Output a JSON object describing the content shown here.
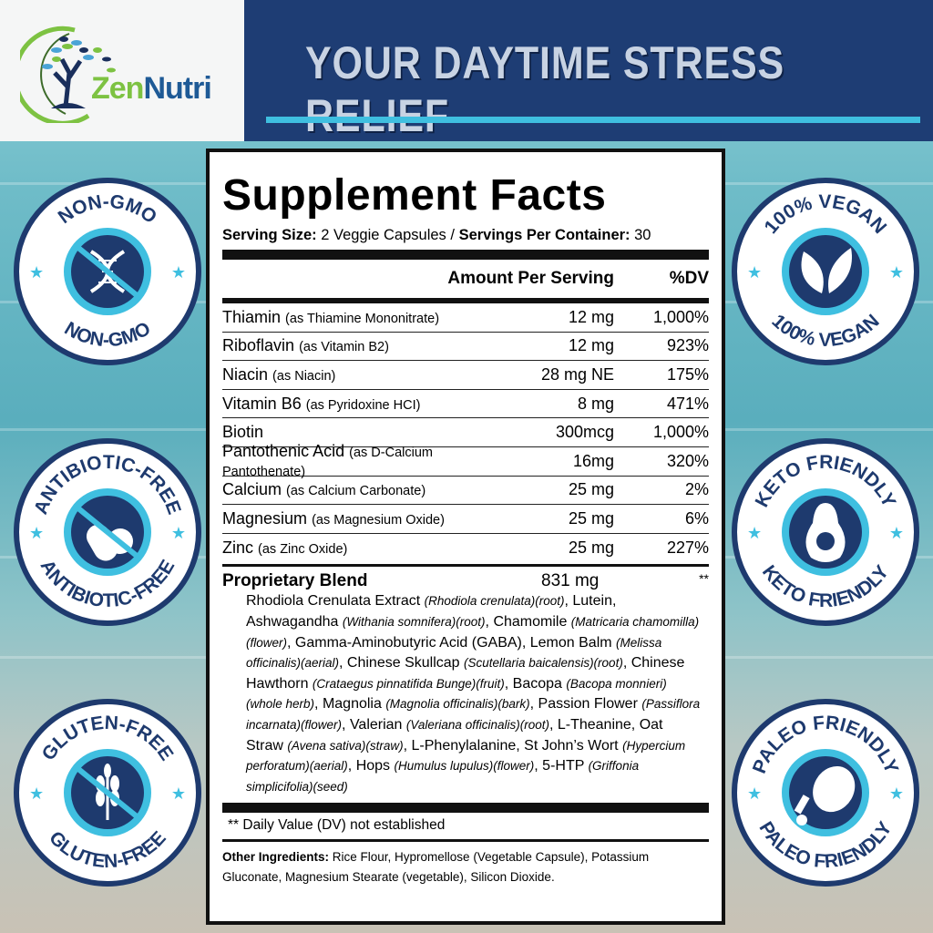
{
  "brand": {
    "name_part1": "Zen",
    "name_part2": "Nutri"
  },
  "header": {
    "title": "YOUR DAYTIME STRESS RELIEF"
  },
  "colors": {
    "navy": "#1e3d74",
    "cyan": "#3fbfe0",
    "badge_navy": "#1e3a6e",
    "green": "#7dc242"
  },
  "badges": [
    {
      "label": "NON-GMO",
      "icon": "dna-crossed-icon"
    },
    {
      "label": "ANTIBIOTIC-FREE",
      "icon": "pills-crossed-icon"
    },
    {
      "label": "GLUTEN-FREE",
      "icon": "wheat-crossed-icon"
    },
    {
      "label": "100% VEGAN",
      "icon": "leaves-icon"
    },
    {
      "label": "KETO FRIENDLY",
      "icon": "avocado-icon"
    },
    {
      "label": "PALEO FRIENDLY",
      "icon": "drumstick-icon"
    }
  ],
  "facts": {
    "title": "Supplement Facts",
    "serving_size_label": "Serving Size:",
    "serving_size": " 2 Veggie Capsules / ",
    "servings_label": "Servings Per Container:",
    "servings": " 30",
    "col_amount": "Amount Per Serving",
    "col_dv": "%DV",
    "rows": [
      {
        "name": "Thiamin",
        "detail": "(as Thiamine Mononitrate)",
        "amount": "12 mg",
        "dv": "1,000%"
      },
      {
        "name": "Riboflavin",
        "detail": "(as Vitamin B2)",
        "amount": "12 mg",
        "dv": "923%"
      },
      {
        "name": "Niacin",
        "detail": "(as Niacin)",
        "amount": "28 mg NE",
        "dv": "175%"
      },
      {
        "name": "Vitamin B6",
        "detail": "(as Pyridoxine HCI)",
        "amount": "8 mg",
        "dv": "471%"
      },
      {
        "name": "Biotin",
        "detail": "",
        "amount": "300mcg",
        "dv": "1,000%"
      },
      {
        "name": "Pantothenic Acid",
        "detail": "(as D-Calcium Pantothenate)",
        "amount": "16mg",
        "dv": "320%"
      },
      {
        "name": "Calcium",
        "detail": "(as Calcium Carbonate)",
        "amount": "25 mg",
        "dv": "2%"
      },
      {
        "name": "Magnesium",
        "detail": "(as Magnesium Oxide)",
        "amount": "25 mg",
        "dv": "6%"
      },
      {
        "name": "Zinc",
        "detail": "(as Zinc Oxide)",
        "amount": "25 mg",
        "dv": "227%"
      }
    ],
    "blend": {
      "name": "Proprietary Blend",
      "amount": "831 mg",
      "dv": "**",
      "parts": [
        [
          "Rhodiola Crenulata Extract ",
          "(Rhodiola crenulata)(root)",
          ", Lutein, Ashwagandha "
        ],
        [
          "",
          "(Withania somnifera)(root)",
          ", Chamomile "
        ],
        [
          "",
          "(Matricaria chamomilla)(flower)",
          ", Gamma-Aminobutyric Acid (GABA), Lemon Balm "
        ],
        [
          "",
          "(Melissa officinalis)(aerial)",
          ", Chinese Skullcap "
        ],
        [
          "",
          "(Scutellaria baicalensis)(root)",
          ", Chinese Hawthorn "
        ],
        [
          "",
          "(Crataegus pinnatifida Bunge)(fruit)",
          ", Bacopa "
        ],
        [
          "",
          "(Bacopa monnieri)(whole herb)",
          ", Magnolia "
        ],
        [
          "",
          "(Magnolia officinalis)(bark)",
          ", Passion Flower "
        ],
        [
          "",
          "(Passiflora incarnata)(flower)",
          ", Valerian "
        ],
        [
          "",
          "(Valeriana officinalis)(root)",
          ", L-Theanine, Oat Straw "
        ],
        [
          "",
          "(Avena sativa)(straw)",
          ", L-Phenylalanine, St John’s Wort "
        ],
        [
          "",
          "(Hypercium perforatum)(aerial)",
          ", Hops "
        ],
        [
          "",
          "(Humulus lupulus)(flower)",
          ", 5-HTP "
        ],
        [
          "",
          "(Griffonia simplicifolia)(seed)",
          ""
        ]
      ]
    },
    "dv_note": "** Daily Value (DV) not established",
    "other_label": "Other Ingredients:",
    "other": " Rice Flour, Hypromellose (Vegetable Capsule), Potassium Gluconate, Magnesium Stearate (vegetable), Silicon Dioxide."
  }
}
